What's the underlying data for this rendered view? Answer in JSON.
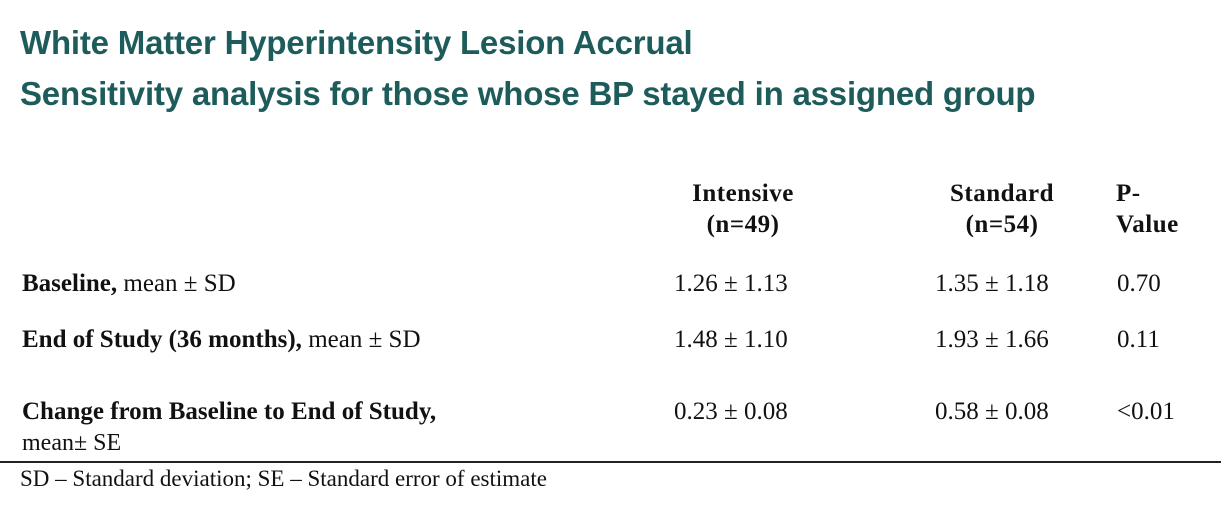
{
  "title": {
    "line1": "White Matter Hyperintensity Lesion Accrual",
    "line2": "Sensitivity analysis for those whose BP stayed in assigned group"
  },
  "table": {
    "columns": [
      {
        "line1": "Intensive",
        "line2": "(n=49)"
      },
      {
        "line1": "Standard",
        "line2": "(n=54)"
      },
      {
        "line1": "P-",
        "line2": "Value"
      }
    ],
    "rows": [
      {
        "label_bold": "Baseline,",
        "label_normal": " mean ± SD",
        "label_line2": "",
        "intensive": "1.26 ± 1.13",
        "standard": "1.35 ± 1.18",
        "p_value": "0.70"
      },
      {
        "label_bold": "End of Study (36 months),",
        "label_normal": " mean ± SD",
        "label_line2": "",
        "intensive": "1.48 ± 1.10",
        "standard": "1.93 ± 1.66",
        "p_value": "0.11"
      },
      {
        "label_bold": "Change from Baseline to End of Study,",
        "label_normal": "",
        "label_line2": "mean± SE",
        "intensive": "0.23 ± 0.08",
        "standard": "0.58 ± 0.08",
        "p_value": "<0.01"
      }
    ]
  },
  "footnote": "SD – Standard deviation; SE – Standard error of estimate"
}
